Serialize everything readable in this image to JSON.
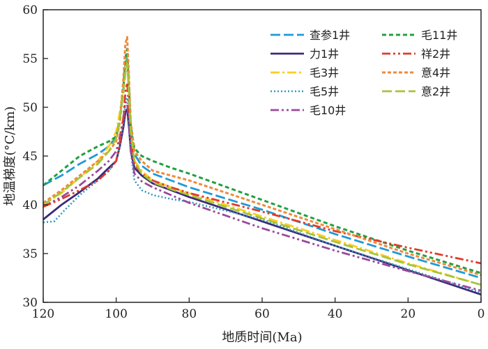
{
  "chart_data": {
    "type": "line",
    "title": "",
    "xlabel": "地质时间(Ma)",
    "ylabel": "地温梯度(°C/km)",
    "xlim": [
      120,
      0
    ],
    "ylim": [
      30,
      60
    ],
    "x_ticks": [
      120,
      100,
      80,
      60,
      40,
      20,
      0
    ],
    "y_ticks": [
      30,
      35,
      40,
      45,
      50,
      55,
      60
    ],
    "grid": false,
    "legend_position": "top-right",
    "series": [
      {
        "name": "查参1井",
        "color": "#1f9ad6",
        "dash": "14 5",
        "width": 2.8,
        "x": [
          120,
          115,
          110,
          105,
          102,
          100,
          99,
          98,
          97.5,
          97,
          96.5,
          96,
          95,
          93,
          90,
          85,
          80,
          60,
          40,
          20,
          0
        ],
        "y": [
          42,
          43,
          44.2,
          45.2,
          46,
          47,
          49,
          52,
          54.5,
          55,
          52,
          48,
          45.2,
          44,
          43.2,
          42.5,
          41.8,
          39.5,
          37,
          34.7,
          32.5
        ]
      },
      {
        "name": "力1井",
        "color": "#3b2a7a",
        "dash": "",
        "width": 2.8,
        "x": [
          120,
          115,
          110,
          105,
          102,
          100,
          99,
          98,
          97.5,
          97,
          96.5,
          96,
          95,
          93,
          90,
          85,
          80,
          60,
          40,
          20,
          0
        ],
        "y": [
          38.5,
          40,
          41.3,
          42.7,
          43.8,
          44.5,
          46,
          48,
          49.5,
          49.8,
          48,
          45.5,
          43.8,
          43,
          42.2,
          41.5,
          40.8,
          38.3,
          35.8,
          33.3,
          30.8
        ]
      },
      {
        "name": "毛3井",
        "color": "#ffcc22",
        "dash": "13 4 3 4",
        "width": 2.8,
        "x": [
          120,
          115,
          110,
          105,
          102,
          100,
          99,
          98,
          97.5,
          97,
          96.5,
          96,
          95,
          93,
          90,
          85,
          80,
          60,
          40,
          20,
          0
        ],
        "y": [
          40,
          41.2,
          42.8,
          44.5,
          46,
          47.5,
          49.5,
          52,
          54,
          55.2,
          52,
          48,
          44.5,
          43.5,
          42.5,
          41.8,
          41.2,
          38.8,
          36.4,
          34,
          31.8
        ]
      },
      {
        "name": "毛5井",
        "color": "#3399bb",
        "dash": "2 3",
        "width": 2.6,
        "x": [
          120,
          117,
          114,
          110,
          105,
          102,
          100,
          99,
          98,
          97.5,
          97,
          96.5,
          96,
          95,
          93,
          90,
          85,
          80,
          60,
          40,
          20,
          0
        ],
        "y": [
          38.2,
          38.3,
          39.5,
          41,
          42.5,
          43.5,
          44.5,
          46,
          48.5,
          50.5,
          51,
          49,
          45.5,
          42.5,
          41.5,
          41,
          40.6,
          40.3,
          38.5,
          35.8,
          33.4,
          31
        ]
      },
      {
        "name": "毛10井",
        "color": "#9a4a9a",
        "dash": "12 4 3 4 3 4",
        "width": 2.8,
        "x": [
          120,
          115,
          110,
          105,
          102,
          100,
          99,
          98,
          97.5,
          97,
          96.5,
          96,
          95,
          93,
          90,
          85,
          80,
          60,
          40,
          20,
          0
        ],
        "y": [
          39.8,
          40.8,
          42,
          43.5,
          44.5,
          45.5,
          47,
          49,
          50.5,
          50.5,
          48.5,
          45.5,
          43.2,
          42.4,
          41.8,
          41,
          40.2,
          37.6,
          35.3,
          33.2,
          31.2
        ]
      },
      {
        "name": "毛11井",
        "color": "#21a040",
        "dash": "6 4",
        "width": 3,
        "x": [
          120,
          115,
          110,
          105,
          102,
          100,
          99,
          98,
          97.5,
          97,
          96.5,
          96,
          95,
          93,
          90,
          85,
          80,
          60,
          40,
          20,
          0
        ],
        "y": [
          42,
          43.5,
          45,
          46,
          46.5,
          47,
          48.5,
          52,
          55,
          56,
          52,
          48,
          45.8,
          45,
          44.5,
          43.8,
          43.2,
          40.5,
          37.8,
          35.3,
          33
        ]
      },
      {
        "name": "祥2井",
        "color": "#e03a2a",
        "dash": "12 4 3 4 3 4",
        "width": 2.8,
        "x": [
          120,
          115,
          110,
          105,
          102,
          100,
          99,
          98,
          97.5,
          97,
          96.5,
          96,
          95,
          93,
          90,
          85,
          80,
          60,
          40,
          20,
          0
        ],
        "y": [
          39.8,
          40.6,
          41.5,
          42.5,
          43.5,
          44.5,
          46.5,
          49,
          51.5,
          52.5,
          50,
          46.5,
          44.2,
          43.2,
          42.5,
          41.8,
          41.2,
          39.3,
          37.3,
          35.6,
          34
        ]
      },
      {
        "name": "意4井",
        "color": "#f08a3a",
        "dash": "5 3",
        "width": 3,
        "x": [
          120,
          115,
          110,
          105,
          102,
          100,
          99,
          98,
          97.5,
          97,
          96.5,
          96,
          95,
          93,
          90,
          85,
          80,
          60,
          40,
          20,
          0
        ],
        "y": [
          40.2,
          41.5,
          43,
          44.5,
          45.5,
          46.5,
          48.5,
          53,
          56.5,
          57.2,
          53,
          48.5,
          45.5,
          44.5,
          43.5,
          43,
          42.5,
          40,
          37.5,
          35,
          32.8
        ]
      },
      {
        "name": "意2井",
        "color": "#a6c43a",
        "dash": "14 5",
        "width": 2.8,
        "x": [
          120,
          115,
          110,
          105,
          102,
          100,
          99,
          98,
          97.5,
          97,
          96.5,
          96,
          95,
          93,
          90,
          85,
          80,
          60,
          40,
          20,
          0
        ],
        "y": [
          40,
          41.3,
          42.8,
          44.2,
          45.5,
          46.8,
          48.8,
          51.5,
          53.5,
          54.5,
          51.5,
          47.5,
          44.5,
          43.2,
          42.3,
          41.6,
          41,
          38.6,
          36.2,
          33.9,
          31.8
        ]
      }
    ]
  }
}
